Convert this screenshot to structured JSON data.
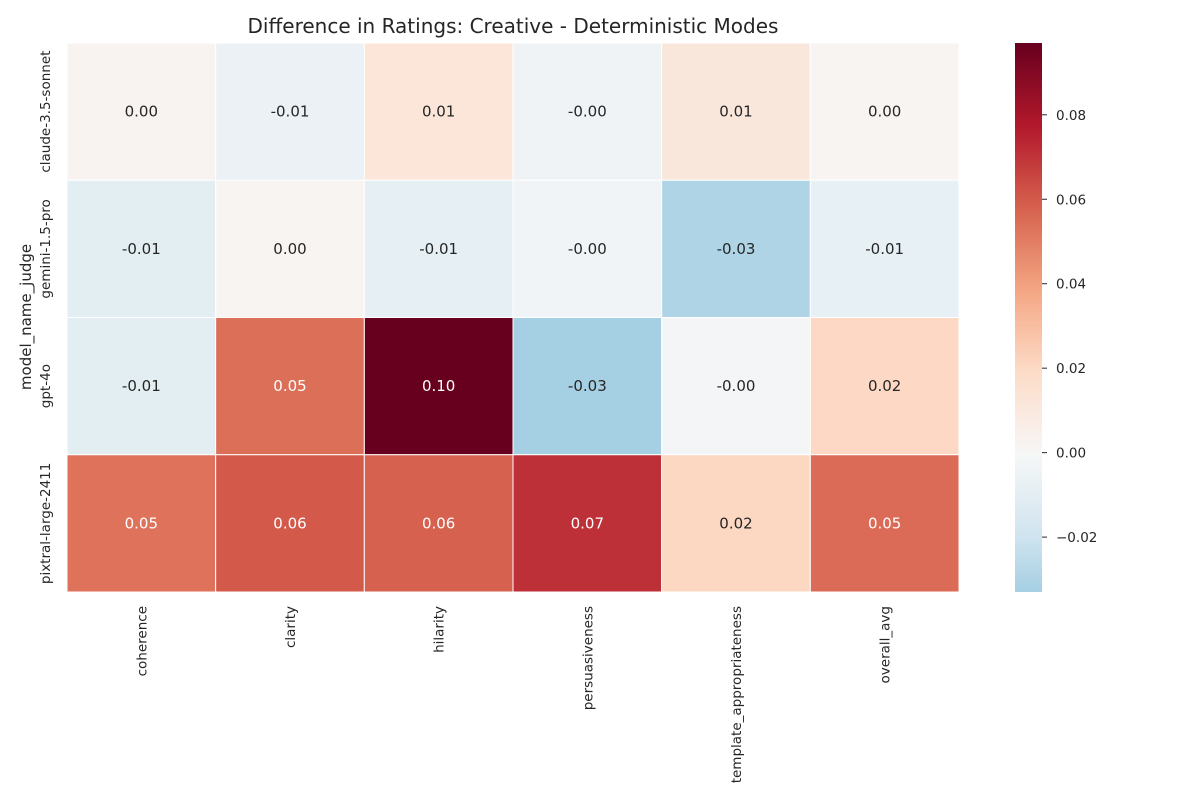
{
  "chart_data": {
    "type": "heatmap",
    "title": "Difference in Ratings: Creative - Deterministic Modes",
    "xlabel": "",
    "ylabel": "model_name_judge",
    "rows": [
      "claude-3.5-sonnet",
      "gemini-1.5-pro",
      "gpt-4o",
      "pixtral-large-2411"
    ],
    "columns": [
      "coherence",
      "clarity",
      "hilarity",
      "persuasiveness",
      "template_appropriateness",
      "overall_avg"
    ],
    "values": [
      [
        0.003,
        -0.006,
        0.012,
        -0.004,
        0.011,
        0.002
      ],
      [
        -0.01,
        0.002,
        -0.009,
        -0.003,
        -0.03,
        -0.008
      ],
      [
        -0.01,
        0.054,
        0.097,
        -0.033,
        -0.002,
        0.02
      ],
      [
        0.053,
        0.06,
        0.058,
        0.071,
        0.021,
        0.055
      ]
    ],
    "value_labels": [
      [
        "0.00",
        "-0.01",
        "0.01",
        "-0.00",
        "0.01",
        "0.00"
      ],
      [
        "-0.01",
        "0.00",
        "-0.01",
        "-0.00",
        "-0.03",
        "-0.01"
      ],
      [
        "-0.01",
        "0.05",
        "0.10",
        "-0.03",
        "-0.00",
        "0.02"
      ],
      [
        "0.05",
        "0.06",
        "0.06",
        "0.07",
        "0.02",
        "0.05"
      ]
    ],
    "colormap": "RdBu_r",
    "center": 0,
    "vmin": -0.033,
    "vmax": 0.097,
    "colorbar": {
      "ticks": [
        -0.02,
        0.0,
        0.02,
        0.04,
        0.06,
        0.08
      ],
      "tick_labels": [
        "−0.02",
        "0.00",
        "0.02",
        "0.04",
        "0.06",
        "0.08"
      ]
    }
  }
}
